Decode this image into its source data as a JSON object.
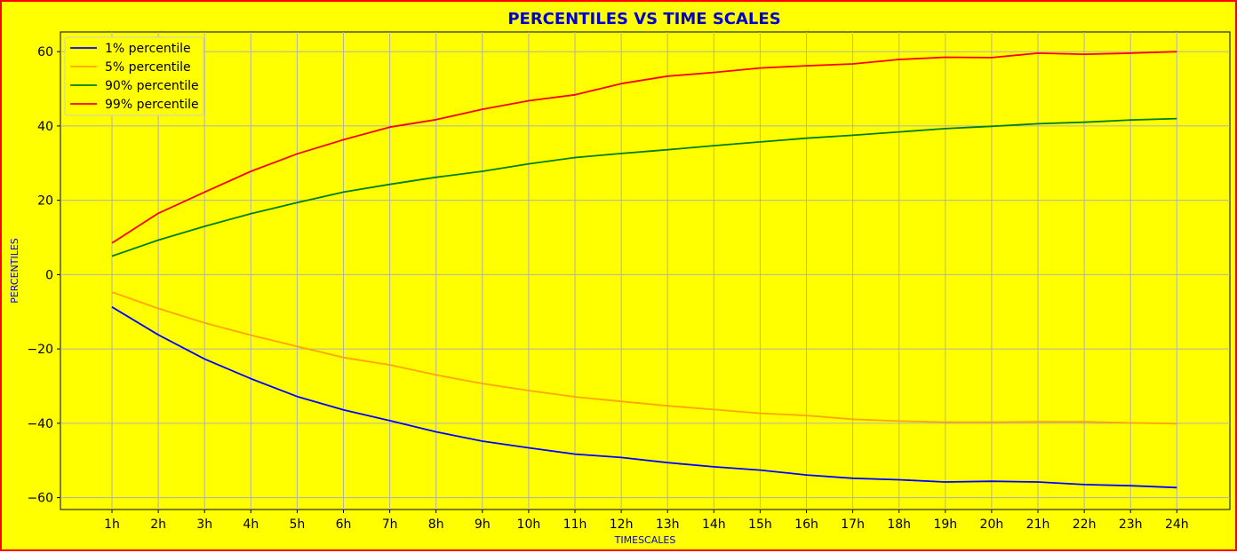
{
  "chart_data": {
    "type": "line",
    "title": "PERCENTILES VS TIME SCALES",
    "xlabel": "TIMESCALES",
    "ylabel": "PERCENTILES",
    "categories": [
      "1h",
      "2h",
      "3h",
      "4h",
      "5h",
      "6h",
      "7h",
      "8h",
      "9h",
      "10h",
      "11h",
      "12h",
      "13h",
      "14h",
      "15h",
      "16h",
      "17h",
      "18h",
      "19h",
      "20h",
      "21h",
      "22h",
      "23h",
      "24h"
    ],
    "ylim": [
      -63.2,
      65.3
    ],
    "yticks": [
      -60,
      -40,
      -20,
      0,
      20,
      40,
      60
    ],
    "grid": true,
    "legend_position": "top-left",
    "series": [
      {
        "name": "1% percentile",
        "color": "#0000ff",
        "values": [
          -8.7,
          -16.2,
          -22.7,
          -28.0,
          -32.8,
          -36.4,
          -39.3,
          -42.3,
          -44.8,
          -46.6,
          -48.3,
          -49.2,
          -50.6,
          -51.7,
          -52.6,
          -53.9,
          -54.8,
          -55.2,
          -55.8,
          -55.6,
          -55.8,
          -56.5,
          -56.8,
          -57.3
        ]
      },
      {
        "name": "5% percentile",
        "color": "#ffa500",
        "values": [
          -4.7,
          -9.1,
          -13.0,
          -16.3,
          -19.3,
          -22.3,
          -24.3,
          -27.0,
          -29.3,
          -31.2,
          -32.9,
          -34.1,
          -35.3,
          -36.3,
          -37.3,
          -37.9,
          -38.9,
          -39.4,
          -39.7,
          -39.7,
          -39.6,
          -39.6,
          -39.9,
          -40.1
        ]
      },
      {
        "name": "90% percentile",
        "color": "#008000",
        "values": [
          5.0,
          9.3,
          13.0,
          16.4,
          19.4,
          22.2,
          24.3,
          26.2,
          27.8,
          29.8,
          31.5,
          32.6,
          33.6,
          34.7,
          35.7,
          36.7,
          37.5,
          38.4,
          39.3,
          39.9,
          40.6,
          41.0,
          41.6,
          42.0
        ]
      },
      {
        "name": "99% percentile",
        "color": "#ff0000",
        "values": [
          8.5,
          16.5,
          22.2,
          27.8,
          32.5,
          36.3,
          39.7,
          41.7,
          44.5,
          46.8,
          48.4,
          51.4,
          53.4,
          54.4,
          55.6,
          56.2,
          56.7,
          57.9,
          58.5,
          58.4,
          59.6,
          59.3,
          59.6,
          60.0
        ]
      }
    ],
    "colors": {
      "background": "#ffff00",
      "border": "#ff0000",
      "title": "#0000cd",
      "axis_label": "#0000cd",
      "grid": "#b0b0b0"
    }
  }
}
